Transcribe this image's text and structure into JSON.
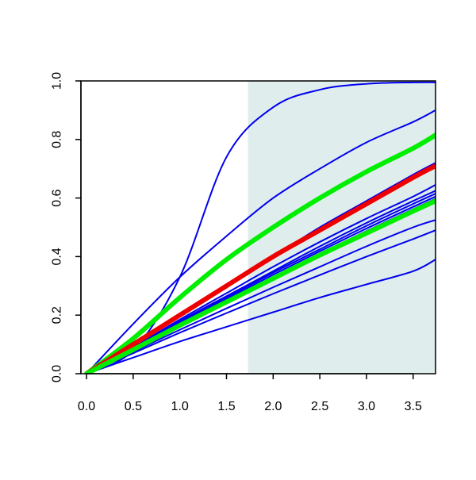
{
  "chart_data": {
    "type": "line",
    "title": "",
    "xlabel": "",
    "ylabel": "",
    "xlim": [
      -0.06,
      3.74
    ],
    "ylim": [
      0.0,
      1.0
    ],
    "x_ticks": [
      0.0,
      0.5,
      1.0,
      1.5,
      2.0,
      2.5,
      3.0,
      3.5
    ],
    "x_tick_labels": [
      "0.0",
      "0.5",
      "1.0",
      "1.5",
      "2.0",
      "2.5",
      "3.0",
      "3.5"
    ],
    "y_ticks": [
      0.0,
      0.2,
      0.4,
      0.6,
      0.8,
      1.0
    ],
    "y_tick_labels": [
      "0.0",
      "0.2",
      "0.4",
      "0.6",
      "0.8",
      "1.0"
    ],
    "grid": false,
    "legend": "none",
    "shaded_region": {
      "x_from": 1.73,
      "x_to": 3.74,
      "color": "#dfeded"
    },
    "series": [
      {
        "color": "#0000ee",
        "width": "thin",
        "x": [
          0,
          0.5,
          1.0,
          1.5,
          2.0,
          2.5,
          3.0,
          3.5,
          3.74
        ],
        "y": [
          0,
          0.08,
          0.33,
          0.74,
          0.91,
          0.97,
          0.99,
          0.995,
          0.995
        ]
      },
      {
        "color": "#0000ee",
        "width": "thin",
        "x": [
          0,
          0.5,
          1.0,
          1.5,
          2.0,
          2.5,
          3.0,
          3.5,
          3.74
        ],
        "y": [
          0,
          0.17,
          0.33,
          0.47,
          0.6,
          0.7,
          0.79,
          0.86,
          0.9
        ]
      },
      {
        "color": "#00ee00",
        "width": "thick",
        "x": [
          0,
          0.5,
          1.0,
          1.5,
          2.0,
          2.5,
          3.0,
          3.5,
          3.74
        ],
        "y": [
          0,
          0.12,
          0.26,
          0.39,
          0.5,
          0.6,
          0.69,
          0.77,
          0.815
        ]
      },
      {
        "color": "#0000ee",
        "width": "thin",
        "x": [
          0,
          0.5,
          1.0,
          1.5,
          2.0,
          2.5,
          3.0,
          3.5,
          3.74
        ],
        "y": [
          0,
          0.1,
          0.2,
          0.3,
          0.4,
          0.5,
          0.59,
          0.68,
          0.72
        ]
      },
      {
        "color": "#0000ee",
        "width": "thin",
        "x": [
          0,
          0.5,
          1.0,
          1.5,
          2.0,
          2.5,
          3.0,
          3.5,
          3.74
        ],
        "y": [
          0,
          0.09,
          0.185,
          0.275,
          0.365,
          0.45,
          0.53,
          0.605,
          0.645
        ]
      },
      {
        "color": "#0000ee",
        "width": "thin",
        "x": [
          0,
          0.5,
          1.0,
          1.5,
          2.0,
          2.5,
          3.0,
          3.5,
          3.74
        ],
        "y": [
          0,
          0.088,
          0.18,
          0.265,
          0.35,
          0.435,
          0.515,
          0.59,
          0.625
        ]
      },
      {
        "color": "#0000ee",
        "width": "thin",
        "x": [
          0,
          0.5,
          1.0,
          1.5,
          2.0,
          2.5,
          3.0,
          3.5,
          3.74
        ],
        "y": [
          0,
          0.087,
          0.175,
          0.26,
          0.345,
          0.425,
          0.505,
          0.58,
          0.615
        ]
      },
      {
        "color": "#0000ee",
        "width": "thin",
        "x": [
          0,
          0.5,
          1.0,
          1.5,
          2.0,
          2.5,
          3.0,
          3.5,
          3.74
        ],
        "y": [
          0,
          0.086,
          0.172,
          0.255,
          0.338,
          0.418,
          0.496,
          0.57,
          0.605
        ]
      },
      {
        "color": "#0000ee",
        "width": "thin",
        "x": [
          0,
          0.5,
          1.0,
          1.5,
          2.0,
          2.5,
          3.0,
          3.5,
          3.74
        ],
        "y": [
          0,
          0.085,
          0.168,
          0.25,
          0.33,
          0.41,
          0.487,
          0.562,
          0.597
        ]
      },
      {
        "color": "#ee0000",
        "width": "thick",
        "x": [
          0,
          0.5,
          1.0,
          1.5,
          2.0,
          2.5,
          3.0,
          3.5,
          3.74
        ],
        "y": [
          0,
          0.1,
          0.2,
          0.3,
          0.4,
          0.49,
          0.58,
          0.67,
          0.71
        ]
      },
      {
        "color": "#00ee00",
        "width": "thick",
        "x": [
          0,
          0.5,
          1.0,
          1.5,
          2.0,
          2.5,
          3.0,
          3.5,
          3.74
        ],
        "y": [
          0,
          0.082,
          0.165,
          0.245,
          0.325,
          0.405,
          0.48,
          0.555,
          0.59
        ]
      },
      {
        "color": "#0000ee",
        "width": "thin",
        "x": [
          0,
          0.5,
          1.0,
          1.5,
          2.0,
          2.5,
          3.0,
          3.5,
          3.74
        ],
        "y": [
          0,
          0.075,
          0.15,
          0.223,
          0.295,
          0.365,
          0.435,
          0.5,
          0.525
        ]
      },
      {
        "color": "#0000ee",
        "width": "thin",
        "x": [
          0,
          0.5,
          1.0,
          1.5,
          2.0,
          2.5,
          3.0,
          3.5,
          3.74
        ],
        "y": [
          0,
          0.07,
          0.14,
          0.207,
          0.273,
          0.337,
          0.4,
          0.46,
          0.49
        ]
      },
      {
        "color": "#0000ee",
        "width": "thin",
        "x": [
          0,
          0.5,
          1.0,
          1.5,
          2.0,
          2.5,
          3.0,
          3.5,
          3.74
        ],
        "y": [
          0,
          0.055,
          0.11,
          0.16,
          0.21,
          0.26,
          0.305,
          0.35,
          0.39
        ]
      }
    ]
  }
}
